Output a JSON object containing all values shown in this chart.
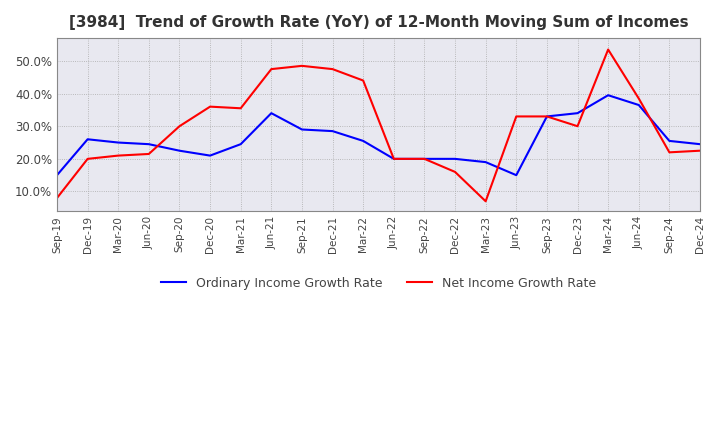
{
  "title": "[3984]  Trend of Growth Rate (YoY) of 12-Month Moving Sum of Incomes",
  "ordinary_income_label": "Ordinary Income Growth Rate",
  "net_income_label": "Net Income Growth Rate",
  "ordinary_color": "#0000FF",
  "net_color": "#FF0000",
  "ylim": [
    4.0,
    57.0
  ],
  "yticks": [
    10.0,
    20.0,
    30.0,
    40.0,
    50.0
  ],
  "plot_bg_color": "#E8E8F0",
  "background_color": "#FFFFFF",
  "grid_color": "#AAAAAA",
  "x_labels": [
    "Sep-19",
    "Dec-19",
    "Mar-20",
    "Jun-20",
    "Sep-20",
    "Dec-20",
    "Mar-21",
    "Jun-21",
    "Sep-21",
    "Dec-21",
    "Mar-22",
    "Jun-22",
    "Sep-22",
    "Dec-22",
    "Mar-23",
    "Jun-23",
    "Sep-23",
    "Dec-23",
    "Mar-24",
    "Jun-24",
    "Sep-24",
    "Dec-24"
  ],
  "ordinary_income": [
    15.0,
    26.0,
    25.0,
    24.5,
    22.5,
    21.0,
    24.5,
    34.0,
    29.0,
    28.5,
    25.5,
    20.0,
    20.0,
    20.0,
    19.0,
    15.0,
    33.0,
    34.0,
    39.5,
    36.5,
    25.5,
    24.5
  ],
  "net_income": [
    8.0,
    20.0,
    21.0,
    21.5,
    30.0,
    36.0,
    35.5,
    47.5,
    48.5,
    47.5,
    44.0,
    20.0,
    20.0,
    16.0,
    7.0,
    33.0,
    33.0,
    30.0,
    53.5,
    38.5,
    22.0,
    22.5
  ]
}
